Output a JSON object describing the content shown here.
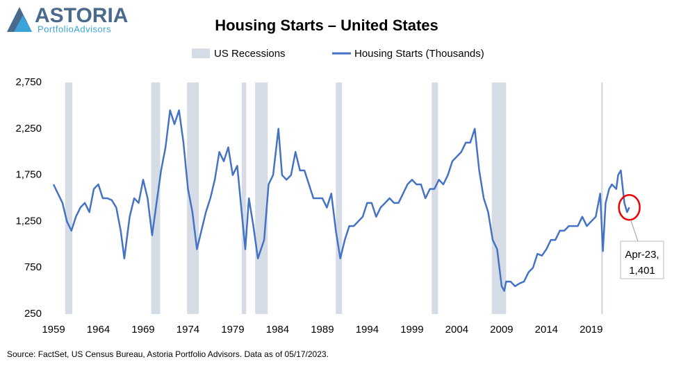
{
  "logo": {
    "name": "ASTORIA",
    "tagline": "PortfolioAdvisors"
  },
  "chart_data": {
    "type": "line",
    "title": "Housing Starts – United States",
    "source": "Source: FactSet, US Census Bureau, Astoria Portfolio Advisors. Data as of 05/17/2023.",
    "xlim": [
      1959,
      2027
    ],
    "xticks": [
      1959,
      1964,
      1969,
      1974,
      1979,
      1984,
      1989,
      1994,
      1999,
      2004,
      2009,
      2014,
      2019
    ],
    "ylim": [
      250,
      2750
    ],
    "yticks": [
      {
        "value": 250,
        "label": "250"
      },
      {
        "value": 750,
        "label": "750"
      },
      {
        "value": 1250,
        "label": "1,250"
      },
      {
        "value": 1750,
        "label": "1,750"
      },
      {
        "value": 2250,
        "label": "2,250"
      },
      {
        "value": 2750,
        "label": "2,750"
      }
    ],
    "grid": false,
    "series": [
      {
        "name": "US Recessions",
        "color": "#d6dce5",
        "kind": "band",
        "ranges": [
          [
            1960.3,
            1961.1
          ],
          [
            1969.9,
            1970.9
          ],
          [
            1973.9,
            1975.2
          ],
          [
            1980.0,
            1980.5
          ],
          [
            1981.5,
            1982.9
          ],
          [
            1990.5,
            1991.2
          ],
          [
            2001.2,
            2001.9
          ],
          [
            2007.9,
            2009.5
          ],
          [
            2020.1,
            2020.3
          ]
        ]
      },
      {
        "name": "Housing Starts (Thousands)",
        "color": "#4472c4",
        "kind": "line",
        "x": [
          1959,
          1959.5,
          1960,
          1960.5,
          1961,
          1961.5,
          1962,
          1962.5,
          1963,
          1963.5,
          1964,
          1964.5,
          1965,
          1965.5,
          1966,
          1966.5,
          1966.9,
          1967.5,
          1968,
          1968.5,
          1969,
          1969.5,
          1970,
          1970.5,
          1971,
          1971.5,
          1972,
          1972.5,
          1973,
          1973.5,
          1974,
          1974.5,
          1975,
          1975.5,
          1976,
          1976.5,
          1977,
          1977.5,
          1978,
          1978.5,
          1979,
          1979.5,
          1980,
          1980.4,
          1980.8,
          1981.3,
          1981.8,
          1982.5,
          1983,
          1983.5,
          1984.1,
          1984.5,
          1985,
          1985.5,
          1986,
          1986.5,
          1987,
          1987.5,
          1988,
          1988.5,
          1989,
          1989.5,
          1990,
          1990.5,
          1991,
          1991.5,
          1992,
          1992.5,
          1993,
          1993.5,
          1994,
          1994.5,
          1995,
          1995.5,
          1996,
          1996.5,
          1997,
          1997.5,
          1998,
          1998.5,
          1999,
          1999.5,
          2000,
          2000.5,
          2001,
          2001.5,
          2002,
          2002.5,
          2003,
          2003.5,
          2004,
          2004.5,
          2005,
          2005.5,
          2006,
          2006.5,
          2007,
          2007.5,
          2008,
          2008.5,
          2009,
          2009.3,
          2009.5,
          2010,
          2010.5,
          2011,
          2011.5,
          2012,
          2012.5,
          2013,
          2013.5,
          2014,
          2014.5,
          2015,
          2015.5,
          2016,
          2016.5,
          2017,
          2017.5,
          2018,
          2018.5,
          2019,
          2019.5,
          2020,
          2020.3,
          2020.6,
          2021,
          2021.3,
          2021.8,
          2022,
          2022.3,
          2022.7,
          2023,
          2023.25
        ],
        "values": [
          1650,
          1550,
          1450,
          1250,
          1150,
          1300,
          1400,
          1450,
          1350,
          1600,
          1650,
          1500,
          1500,
          1480,
          1400,
          1150,
          850,
          1300,
          1500,
          1450,
          1700,
          1500,
          1100,
          1450,
          1800,
          2050,
          2450,
          2300,
          2450,
          2100,
          1600,
          1350,
          950,
          1150,
          1350,
          1500,
          1700,
          2000,
          1900,
          2050,
          1750,
          1850,
          1350,
          950,
          1500,
          1200,
          850,
          1050,
          1650,
          1750,
          2250,
          1750,
          1700,
          1750,
          2000,
          1800,
          1800,
          1650,
          1500,
          1500,
          1500,
          1400,
          1550,
          1150,
          850,
          1050,
          1200,
          1200,
          1250,
          1300,
          1450,
          1450,
          1300,
          1400,
          1450,
          1500,
          1450,
          1450,
          1550,
          1650,
          1700,
          1650,
          1650,
          1500,
          1600,
          1600,
          1700,
          1650,
          1750,
          1900,
          1950,
          2000,
          2100,
          2100,
          2250,
          1800,
          1500,
          1350,
          1050,
          950,
          550,
          500,
          600,
          600,
          550,
          580,
          600,
          700,
          750,
          900,
          880,
          950,
          1050,
          1050,
          1150,
          1150,
          1200,
          1200,
          1200,
          1300,
          1200,
          1250,
          1300,
          1550,
          930,
          1450,
          1600,
          1650,
          1600,
          1750,
          1800,
          1450,
          1350,
          1401
        ]
      }
    ],
    "annotation": {
      "lines": [
        "Apr-23,",
        "1,401"
      ]
    }
  }
}
